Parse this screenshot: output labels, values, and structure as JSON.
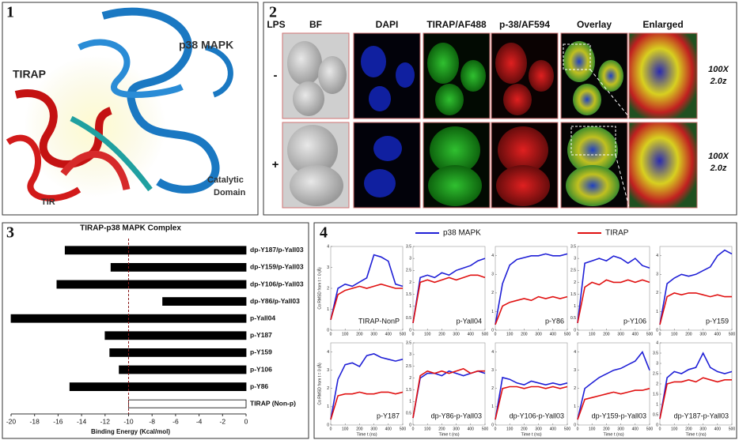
{
  "panel_labels": [
    "1",
    "2",
    "3",
    "4"
  ],
  "structure": {
    "labels": [
      "p38 MAPK",
      "TIRAP",
      "Catalytic",
      "Domain",
      "TIR"
    ]
  },
  "microscopy": {
    "corner": "LPS",
    "columns": [
      "BF",
      "DAPI",
      "TIRAP/AF488",
      "p-38/AF594",
      "Overlay",
      "Enlarged"
    ],
    "rows": [
      "-",
      "+"
    ],
    "magnification": [
      "100X",
      "2.0z"
    ]
  },
  "chart_data": [
    {
      "type": "barh",
      "title": "TIRAP-p38 MAPK Complex",
      "xlabel": "Binding Energy (Kcal/mol)",
      "categories": [
        "dp-Y187/p-Yall03",
        "dp-Y159/p-Yall03",
        "dp-Y106/p-Yall03",
        "dp-Y86/p-Yall03",
        "p-Yall04",
        "p-Y187",
        "p-Y159",
        "p-Y106",
        "p-Y86",
        "TIRAP (Non-p)"
      ],
      "values": [
        -15.4,
        -11.5,
        -16.1,
        -7.1,
        -20,
        -12,
        -11.6,
        -10.8,
        -15,
        -10
      ],
      "colors": [
        "#000000",
        "#000000",
        "#000000",
        "#000000",
        "#000000",
        "#000000",
        "#000000",
        "#000000",
        "#000000",
        "#ffffff"
      ],
      "xlim": [
        -20,
        0
      ],
      "xticks": [
        -20,
        -18,
        -16,
        -14,
        -12,
        -10,
        -8,
        -6,
        -4,
        -2,
        0
      ],
      "reference_line": -10,
      "reference_color": "#8b1a1a"
    },
    {
      "type": "line-grid",
      "legend": [
        {
          "name": "p38 MAPK",
          "color": "#1f1fd6"
        },
        {
          "name": "TIRAP",
          "color": "#e01010"
        }
      ],
      "xlabel": "Time t (ns)",
      "ylabel": "Cα RMSD from t = 0 (Å)",
      "x": [
        0,
        50,
        100,
        150,
        200,
        250,
        300,
        350,
        400,
        450,
        500
      ],
      "xlim": [
        0,
        500
      ],
      "xticks": [
        0,
        100,
        200,
        300,
        400,
        500
      ],
      "panels": [
        {
          "title": "TIRAP-NonP",
          "ylim": [
            0,
            4
          ],
          "yticks": [
            0,
            1,
            2,
            3,
            4
          ],
          "series": [
            [
              0.5,
              2.0,
              2.2,
              2.1,
              2.3,
              2.5,
              3.6,
              3.5,
              3.3,
              2.2,
              2.1
            ],
            [
              0.5,
              1.7,
              1.9,
              2.0,
              2.1,
              2.0,
              2.1,
              2.2,
              2.1,
              2.0,
              2.0
            ]
          ]
        },
        {
          "title": "p-Yall04",
          "ylim": [
            0,
            3.5
          ],
          "yticks": [
            0,
            0.5,
            1,
            1.5,
            2,
            2.5,
            3,
            3.5
          ],
          "series": [
            [
              0.3,
              2.2,
              2.3,
              2.2,
              2.4,
              2.3,
              2.5,
              2.6,
              2.7,
              2.9,
              3.0
            ],
            [
              0.3,
              2.0,
              2.1,
              2.0,
              2.1,
              2.2,
              2.1,
              2.2,
              2.3,
              2.3,
              2.2
            ]
          ]
        },
        {
          "title": "p-Y86",
          "ylim": [
            0,
            4.5
          ],
          "yticks": [
            0,
            1,
            2,
            3,
            4
          ],
          "series": [
            [
              0.3,
              2.5,
              3.5,
              3.8,
              3.9,
              4.0,
              4.0,
              4.1,
              4.0,
              4.0,
              4.1
            ],
            [
              0.3,
              1.3,
              1.5,
              1.6,
              1.7,
              1.6,
              1.8,
              1.7,
              1.8,
              1.7,
              1.8
            ]
          ]
        },
        {
          "title": "p-Y106",
          "ylim": [
            0,
            3.5
          ],
          "yticks": [
            0,
            0.5,
            1,
            1.5,
            2,
            2.5,
            3,
            3.5
          ],
          "series": [
            [
              0.3,
              2.8,
              2.9,
              3.0,
              2.9,
              3.1,
              3.0,
              2.8,
              3.0,
              2.7,
              2.6
            ],
            [
              0.3,
              1.8,
              2.0,
              1.9,
              2.1,
              2.0,
              2.0,
              2.1,
              2.0,
              2.1,
              2.0
            ]
          ]
        },
        {
          "title": "p-Y159",
          "ylim": [
            0,
            4.5
          ],
          "yticks": [
            0,
            1,
            2,
            3,
            4
          ],
          "series": [
            [
              0.3,
              2.5,
              2.8,
              3.0,
              2.9,
              3.0,
              3.2,
              3.4,
              4.0,
              4.3,
              4.1
            ],
            [
              0.3,
              1.8,
              2.0,
              1.9,
              2.0,
              2.0,
              1.9,
              1.8,
              1.9,
              1.8,
              1.8
            ]
          ]
        },
        {
          "title": "p-Y187",
          "ylim": [
            0,
            4.5
          ],
          "yticks": [
            0,
            1,
            2,
            3,
            4
          ],
          "series": [
            [
              0.3,
              2.5,
              3.3,
              3.4,
              3.2,
              3.8,
              3.9,
              3.7,
              3.6,
              3.5,
              3.6
            ],
            [
              0.3,
              1.6,
              1.7,
              1.7,
              1.8,
              1.7,
              1.7,
              1.8,
              1.8,
              1.7,
              1.8
            ]
          ]
        },
        {
          "title": "dp-Y86-p-Yall03",
          "ylim": [
            0,
            3.5
          ],
          "yticks": [
            0,
            0.5,
            1,
            1.5,
            2,
            2.5,
            3,
            3.5
          ],
          "series": [
            [
              0.3,
              2.0,
              2.2,
              2.2,
              2.1,
              2.3,
              2.2,
              2.1,
              2.2,
              2.3,
              2.2
            ],
            [
              0.3,
              2.1,
              2.3,
              2.2,
              2.3,
              2.2,
              2.3,
              2.4,
              2.2,
              2.3,
              2.3
            ]
          ]
        },
        {
          "title": "dp-Y106-p-Yall03",
          "ylim": [
            0,
            4.5
          ],
          "yticks": [
            0,
            1,
            2,
            3,
            4
          ],
          "series": [
            [
              0.3,
              2.6,
              2.5,
              2.3,
              2.2,
              2.4,
              2.3,
              2.2,
              2.3,
              2.2,
              2.3
            ],
            [
              0.3,
              2.0,
              2.1,
              2.1,
              2.0,
              2.1,
              2.1,
              2.0,
              2.1,
              2.0,
              2.1
            ]
          ]
        },
        {
          "title": "dp-Y159-p-Yall03",
          "ylim": [
            0,
            4.5
          ],
          "yticks": [
            0,
            1,
            2,
            3,
            4
          ],
          "series": [
            [
              0.3,
              2.0,
              2.3,
              2.6,
              2.8,
              3.0,
              3.1,
              3.3,
              3.5,
              4.0,
              3.0
            ],
            [
              0.3,
              1.4,
              1.5,
              1.6,
              1.7,
              1.8,
              1.7,
              1.8,
              1.9,
              1.9,
              2.0
            ]
          ]
        },
        {
          "title": "dp-Y187-p-Yall03",
          "ylim": [
            0,
            4
          ],
          "yticks": [
            0,
            0.5,
            1,
            1.5,
            2,
            2.5,
            3,
            3.5,
            4
          ],
          "series": [
            [
              0.3,
              2.3,
              2.6,
              2.5,
              2.7,
              2.8,
              3.5,
              2.8,
              2.6,
              2.5,
              2.6
            ],
            [
              0.3,
              2.0,
              2.1,
              2.1,
              2.2,
              2.1,
              2.3,
              2.2,
              2.1,
              2.2,
              2.2
            ]
          ]
        }
      ]
    }
  ]
}
